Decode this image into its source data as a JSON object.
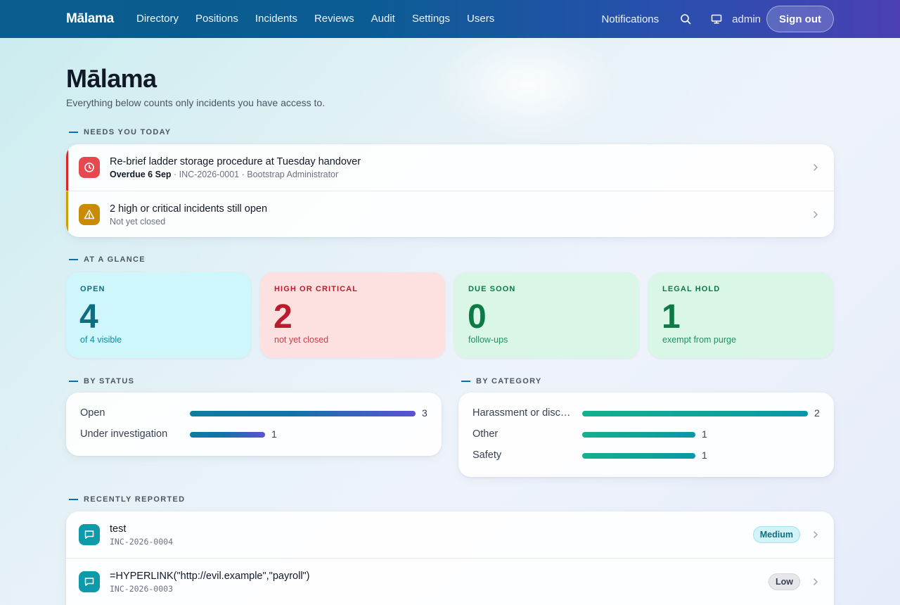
{
  "nav": {
    "brand": "Mālama",
    "links": [
      "Directory",
      "Positions",
      "Incidents",
      "Reviews",
      "Audit",
      "Settings",
      "Users"
    ],
    "notifications": "Notifications",
    "search_icon": "search-icon",
    "display_icon": "monitor-icon",
    "user": "admin",
    "sign_out": "Sign out"
  },
  "page": {
    "title": "Mālama",
    "subtitle": "Everything below counts only incidents you have access to."
  },
  "needs_today": {
    "label": "NEEDS YOU TODAY",
    "items": [
      {
        "icon": "clock-icon",
        "accent": "#dc2626",
        "icon_bg": "#e5484d",
        "title": "Re-brief ladder storage procedure at Tuesday handover",
        "sub_strong": "Overdue 6 Sep",
        "sub": " · INC-2026-0001 · Bootstrap Administrator"
      },
      {
        "icon": "warning-icon",
        "accent": "#d19a06",
        "icon_bg": "#c98a04",
        "title": "2 high or critical incidents still open",
        "sub_strong": "",
        "sub": "Not yet closed"
      }
    ]
  },
  "at_a_glance": {
    "label": "AT A GLANCE",
    "stats": [
      {
        "label": "OPEN",
        "value": "4",
        "sub": "of 4 visible",
        "bg": "#cff7fb",
        "fg": "#0e6d7f",
        "sub_fg": "#0e8aa0"
      },
      {
        "label": "HIGH OR CRITICAL",
        "value": "2",
        "sub": "not yet closed",
        "bg": "#fde0e0",
        "fg": "#b91c2c",
        "sub_fg": "#c2414d"
      },
      {
        "label": "DUE SOON",
        "value": "0",
        "sub": "follow-ups",
        "bg": "#d9f6e6",
        "fg": "#0b7a46",
        "sub_fg": "#239060"
      },
      {
        "label": "LEGAL HOLD",
        "value": "1",
        "sub": "exempt from purge",
        "bg": "#d9f6e6",
        "fg": "#0b7a46",
        "sub_fg": "#239060"
      }
    ]
  },
  "by_status": {
    "label": "BY STATUS",
    "max": 3,
    "items": [
      {
        "label": "Open",
        "count": 3
      },
      {
        "label": "Under investigation",
        "count": 1
      }
    ]
  },
  "by_category": {
    "label": "BY CATEGORY",
    "max": 2,
    "items": [
      {
        "label": "Harassment or discr…",
        "count": 2
      },
      {
        "label": "Other",
        "count": 1
      },
      {
        "label": "Safety",
        "count": 1
      }
    ]
  },
  "recent": {
    "label": "RECENTLY REPORTED",
    "items": [
      {
        "icon": "message-icon",
        "title": "test",
        "id": "INC-2026-0004",
        "severity": "Medium",
        "sev_bg": "#d2f4f9",
        "sev_fg": "#0e6d7f",
        "sev_border": "#9ee3ee"
      },
      {
        "icon": "message-icon",
        "title": "=HYPERLINK(\"http://evil.example\",\"payroll\")",
        "id": "INC-2026-0003",
        "severity": "Low",
        "sev_bg": "#e5e7eb",
        "sev_fg": "#374151",
        "sev_border": "#d1d5db"
      }
    ]
  }
}
